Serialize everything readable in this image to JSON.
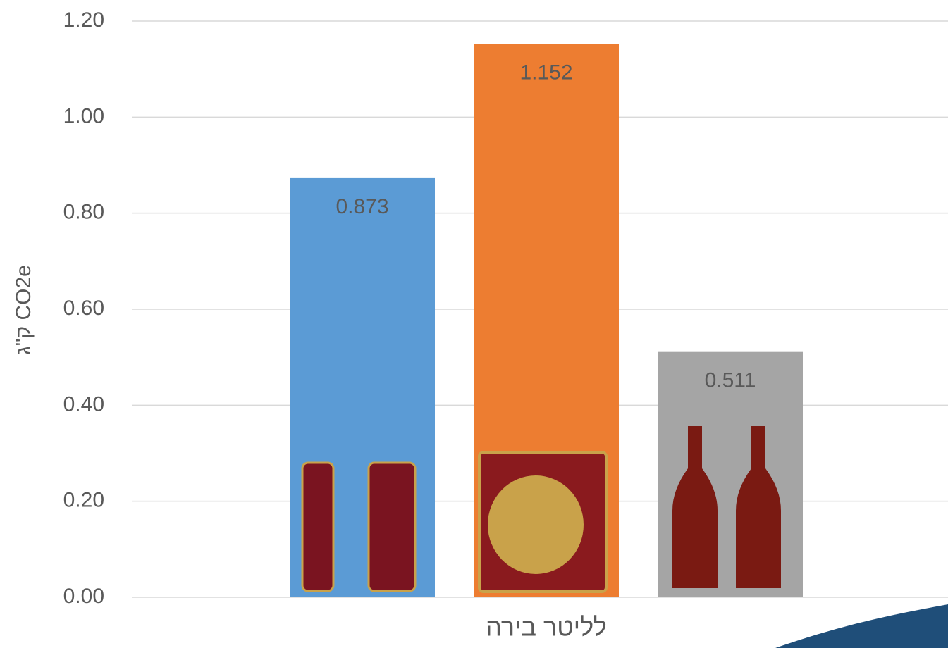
{
  "chart_data": {
    "type": "bar",
    "x_label": "לליטר בירה",
    "y_label": "ק\"ג CO2e",
    "categories": [
      null,
      null,
      null
    ],
    "values": [
      0.873,
      1.152,
      0.511
    ],
    "colors": [
      "#5b9bd5",
      "#ed7d31",
      "#a5a5a5"
    ],
    "ylim": [
      0,
      1.2
    ],
    "yticks": [
      {
        "value": 0,
        "label": "0.00"
      },
      {
        "value": 0.2,
        "label": "0.20"
      },
      {
        "value": 0.4,
        "label": "0.40"
      },
      {
        "value": 0.6,
        "label": "0.60"
      },
      {
        "value": 0.8,
        "label": "0.80"
      },
      {
        "value": 1,
        "label": "1.00"
      },
      {
        "value": 1.2,
        "label": "1.20"
      }
    ],
    "grid": true
  }
}
